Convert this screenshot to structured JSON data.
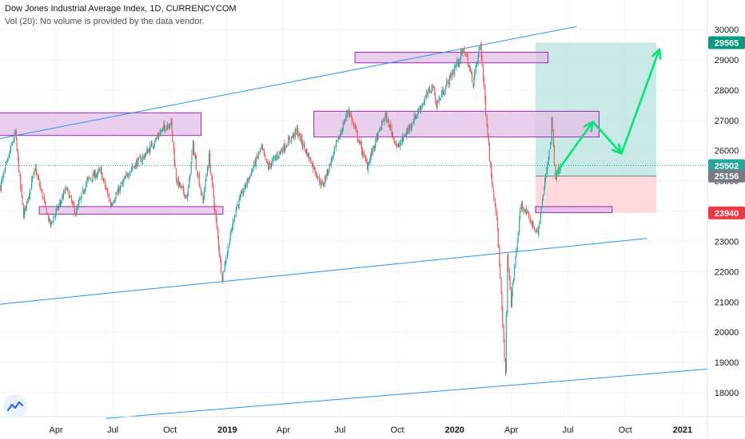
{
  "header": {
    "title": "Dow Jones Industrial Average Index, 1D, CURRENCYCOM",
    "subtitle": "Vol (20): No volume is provided by the data vendor."
  },
  "colors": {
    "up": "#26a69a",
    "down": "#ef5350",
    "zone_fill": "#e1bee7",
    "zone_stroke": "#9c27b0",
    "channel": "#2196f3",
    "target_zone": "#b2dfdb",
    "stop_zone": "#ffcdd2",
    "projection": "#00e676",
    "last_price": "#26a69a",
    "level_green": "#089981",
    "level_gray": "#787b86",
    "level_red": "#f23645"
  },
  "chart_data": {
    "type": "candlestick",
    "x_start": "2018-01-01",
    "x_end": "2021-02-10",
    "ylim": [
      17200,
      30500
    ],
    "y_ticks": [
      18000,
      19000,
      20000,
      21000,
      22000,
      23000,
      24000,
      25000,
      26000,
      27000,
      28000,
      29000,
      30000
    ],
    "x_ticks": [
      {
        "label": "Apr",
        "date": "2018-04-01",
        "bold": false
      },
      {
        "label": "Jul",
        "date": "2018-07-01",
        "bold": false
      },
      {
        "label": "Oct",
        "date": "2018-10-01",
        "bold": false
      },
      {
        "label": "2019",
        "date": "2019-01-01",
        "bold": true
      },
      {
        "label": "Apr",
        "date": "2019-04-01",
        "bold": false
      },
      {
        "label": "Jul",
        "date": "2019-07-01",
        "bold": false
      },
      {
        "label": "Oct",
        "date": "2019-10-01",
        "bold": false
      },
      {
        "label": "2020",
        "date": "2020-01-01",
        "bold": true
      },
      {
        "label": "Apr",
        "date": "2020-04-01",
        "bold": false
      },
      {
        "label": "Jul",
        "date": "2020-07-01",
        "bold": false
      },
      {
        "label": "Oct",
        "date": "2020-10-01",
        "bold": false
      },
      {
        "label": "2021",
        "date": "2021-01-01",
        "bold": true
      }
    ],
    "price_path": [
      [
        "2018-01-02",
        24800
      ],
      [
        "2018-01-26",
        26600
      ],
      [
        "2018-02-08",
        23860
      ],
      [
        "2018-02-27",
        25400
      ],
      [
        "2018-03-23",
        23530
      ],
      [
        "2018-04-18",
        24750
      ],
      [
        "2018-05-03",
        23930
      ],
      [
        "2018-05-21",
        25010
      ],
      [
        "2018-06-12",
        25320
      ],
      [
        "2018-06-28",
        24210
      ],
      [
        "2018-07-31",
        25420
      ],
      [
        "2018-08-21",
        25820
      ],
      [
        "2018-09-21",
        26740
      ],
      [
        "2018-10-03",
        26950
      ],
      [
        "2018-10-11",
        25050
      ],
      [
        "2018-10-29",
        24440
      ],
      [
        "2018-11-07",
        26180
      ],
      [
        "2018-11-23",
        24280
      ],
      [
        "2018-12-03",
        25830
      ],
      [
        "2018-12-24",
        21790
      ],
      [
        "2019-01-15",
        24070
      ],
      [
        "2019-02-25",
        26090
      ],
      [
        "2019-03-08",
        25450
      ],
      [
        "2019-04-23",
        26660
      ],
      [
        "2019-06-03",
        24820
      ],
      [
        "2019-07-15",
        27360
      ],
      [
        "2019-08-14",
        25480
      ],
      [
        "2019-09-12",
        27180
      ],
      [
        "2019-10-02",
        26080
      ],
      [
        "2019-11-27",
        28160
      ],
      [
        "2019-12-03",
        27500
      ],
      [
        "2020-01-17",
        29350
      ],
      [
        "2020-01-31",
        28250
      ],
      [
        "2020-02-12",
        29550
      ],
      [
        "2020-02-28",
        25400
      ],
      [
        "2020-03-09",
        23850
      ],
      [
        "2020-03-23",
        18590
      ],
      [
        "2020-03-26",
        22550
      ],
      [
        "2020-04-01",
        20940
      ],
      [
        "2020-04-17",
        24240
      ],
      [
        "2020-05-14",
        23240
      ],
      [
        "2020-06-03",
        26270
      ],
      [
        "2020-06-05",
        27110
      ],
      [
        "2020-06-11",
        25130
      ],
      [
        "2020-06-19",
        25502
      ]
    ],
    "price_levels": [
      {
        "label": "29565",
        "value": 29565,
        "kind": "green"
      },
      {
        "label": "25502",
        "value": 25502,
        "kind": "last"
      },
      {
        "label": "25156",
        "value": 25156,
        "kind": "gray"
      },
      {
        "label": "23940",
        "value": 23940,
        "kind": "red"
      }
    ],
    "zones": [
      {
        "x1": "2017-12-20",
        "x2": "2018-11-20",
        "y1": 26500,
        "y2": 27250
      },
      {
        "x1": "2018-03-05",
        "x2": "2018-12-25",
        "y1": 23900,
        "y2": 24150
      },
      {
        "x1": "2019-07-25",
        "x2": "2020-05-30",
        "y1": 28900,
        "y2": 29250
      },
      {
        "x1": "2019-05-20",
        "x2": "2020-08-20",
        "y1": 26450,
        "y2": 27300
      },
      {
        "x1": "2020-05-10",
        "x2": "2020-09-10",
        "y1": 23950,
        "y2": 24150
      }
    ],
    "trend_lines": [
      {
        "x1": "2017-12-20",
        "y1": 26350,
        "x2": "2020-07-15",
        "y2": 30100
      },
      {
        "x1": "2017-12-20",
        "y1": 20900,
        "x2": "2020-11-05",
        "y2": 23100
      },
      {
        "x1": "2018-06-20",
        "y1": 17150,
        "x2": "2021-02-10",
        "y2": 18780
      }
    ],
    "position": {
      "x1": "2020-05-10",
      "x2": "2020-11-20",
      "entry": 25156,
      "target": 29565,
      "stop": 23940
    },
    "projection_path": [
      [
        "2020-06-10",
        25200
      ],
      [
        "2020-08-10",
        26950
      ],
      [
        "2020-09-25",
        25900
      ],
      [
        "2020-11-25",
        29350
      ]
    ]
  }
}
